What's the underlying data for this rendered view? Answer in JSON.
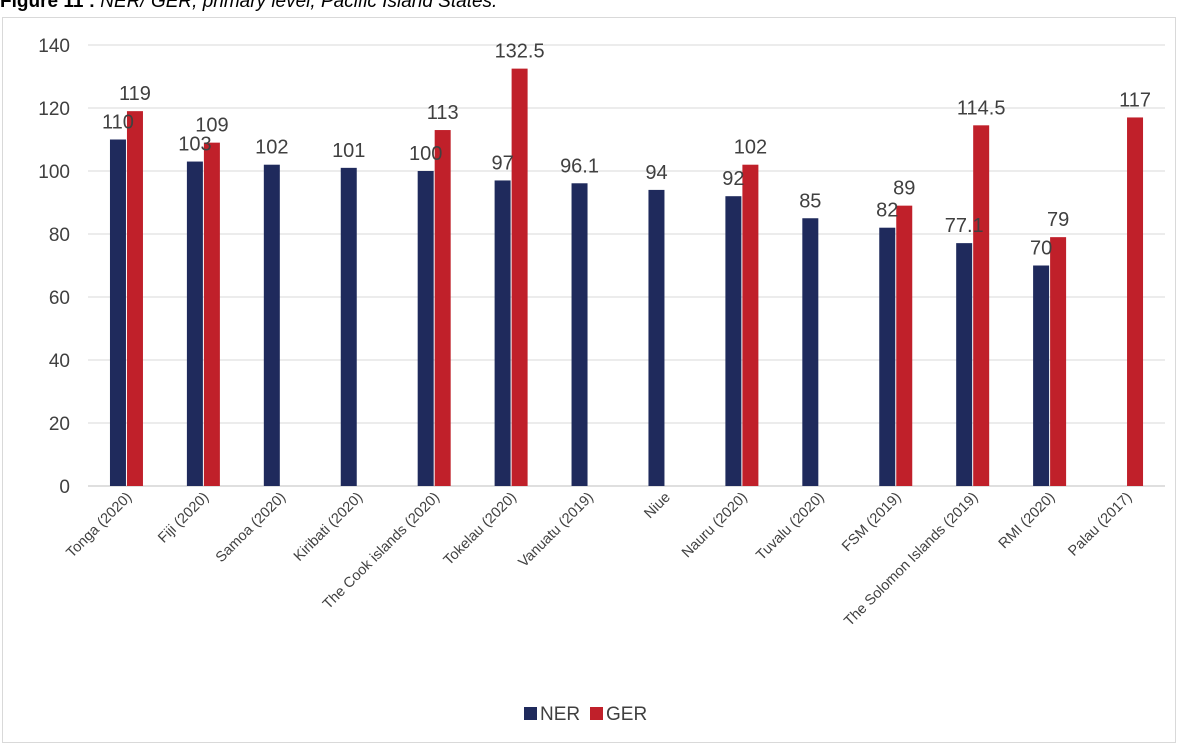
{
  "caption": {
    "label": "Figure 11 :",
    "text": " NER/ GER, primary level, Pacific Island States."
  },
  "chart_data": {
    "type": "bar",
    "title": "",
    "xlabel": "",
    "ylabel": "",
    "ylim": [
      0,
      140
    ],
    "yticks": [
      "0",
      "20",
      "40",
      "60",
      "80",
      "100",
      "120",
      "140"
    ],
    "grid": true,
    "legend_position": "bottom",
    "categories": [
      "Tonga (2020)",
      "Fiji (2020)",
      "Samoa (2020)",
      "Kiribati (2020)",
      "The Cook islands (2020)",
      "Tokelau (2020)",
      "Vanuatu (2019)",
      "Niue",
      "Nauru (2020)",
      "Tuvalu (2020)",
      "FSM (2019)",
      "The Solomon Islands (2019)",
      "RMI (2020)",
      "Palau (2017)"
    ],
    "series": [
      {
        "name": "NER",
        "color": "#1f2a5c",
        "values": [
          110,
          103,
          102,
          101,
          100,
          97,
          96.1,
          94,
          92,
          85,
          82,
          77.1,
          70,
          null
        ],
        "labels": [
          "110",
          "103",
          "102",
          "101",
          "100",
          "97",
          "96.1",
          "94",
          "92",
          "85",
          "82",
          "77.1",
          "70",
          null
        ]
      },
      {
        "name": "GER",
        "color": "#c0202a",
        "values": [
          119,
          109,
          null,
          null,
          113,
          132.5,
          null,
          null,
          102,
          null,
          89,
          114.5,
          79,
          117
        ],
        "labels": [
          "119",
          "109",
          null,
          null,
          "113",
          "132.5",
          null,
          null,
          "102",
          null,
          "89",
          "114.5",
          "79",
          "117"
        ]
      }
    ]
  }
}
